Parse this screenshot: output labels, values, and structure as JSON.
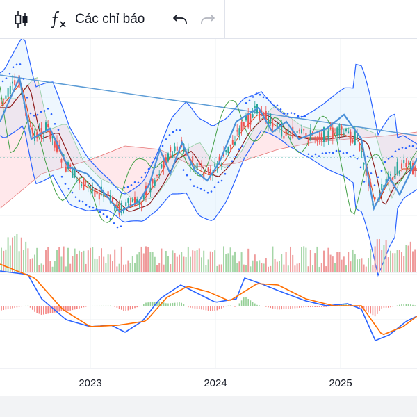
{
  "toolbar": {
    "chart_type_icon": "candlestick-icon",
    "indicators_icon": "function-fx-icon",
    "indicators_label": "Các chỉ báo",
    "undo_icon": "undo-icon",
    "redo_icon": "redo-icon"
  },
  "chart_data": {
    "type": "candlestick",
    "x_tick_labels": [
      "2023",
      "2024",
      "2025"
    ],
    "panes": [
      "price",
      "volume",
      "macd"
    ],
    "overlays": [
      "bollinger-bands",
      "ichimoku-cloud",
      "parabolic-sar",
      "zigzag",
      "trendline"
    ],
    "colors": {
      "up": "#26a69a",
      "down": "#ef5350",
      "bollinger": "#2962ff",
      "macd_line": "#2962ff",
      "signal_line": "#ff6d00",
      "cloud_bull": "#c8e6c9",
      "cloud_bear": "#ffcdd2",
      "trendline": "#5b9bd5"
    }
  }
}
